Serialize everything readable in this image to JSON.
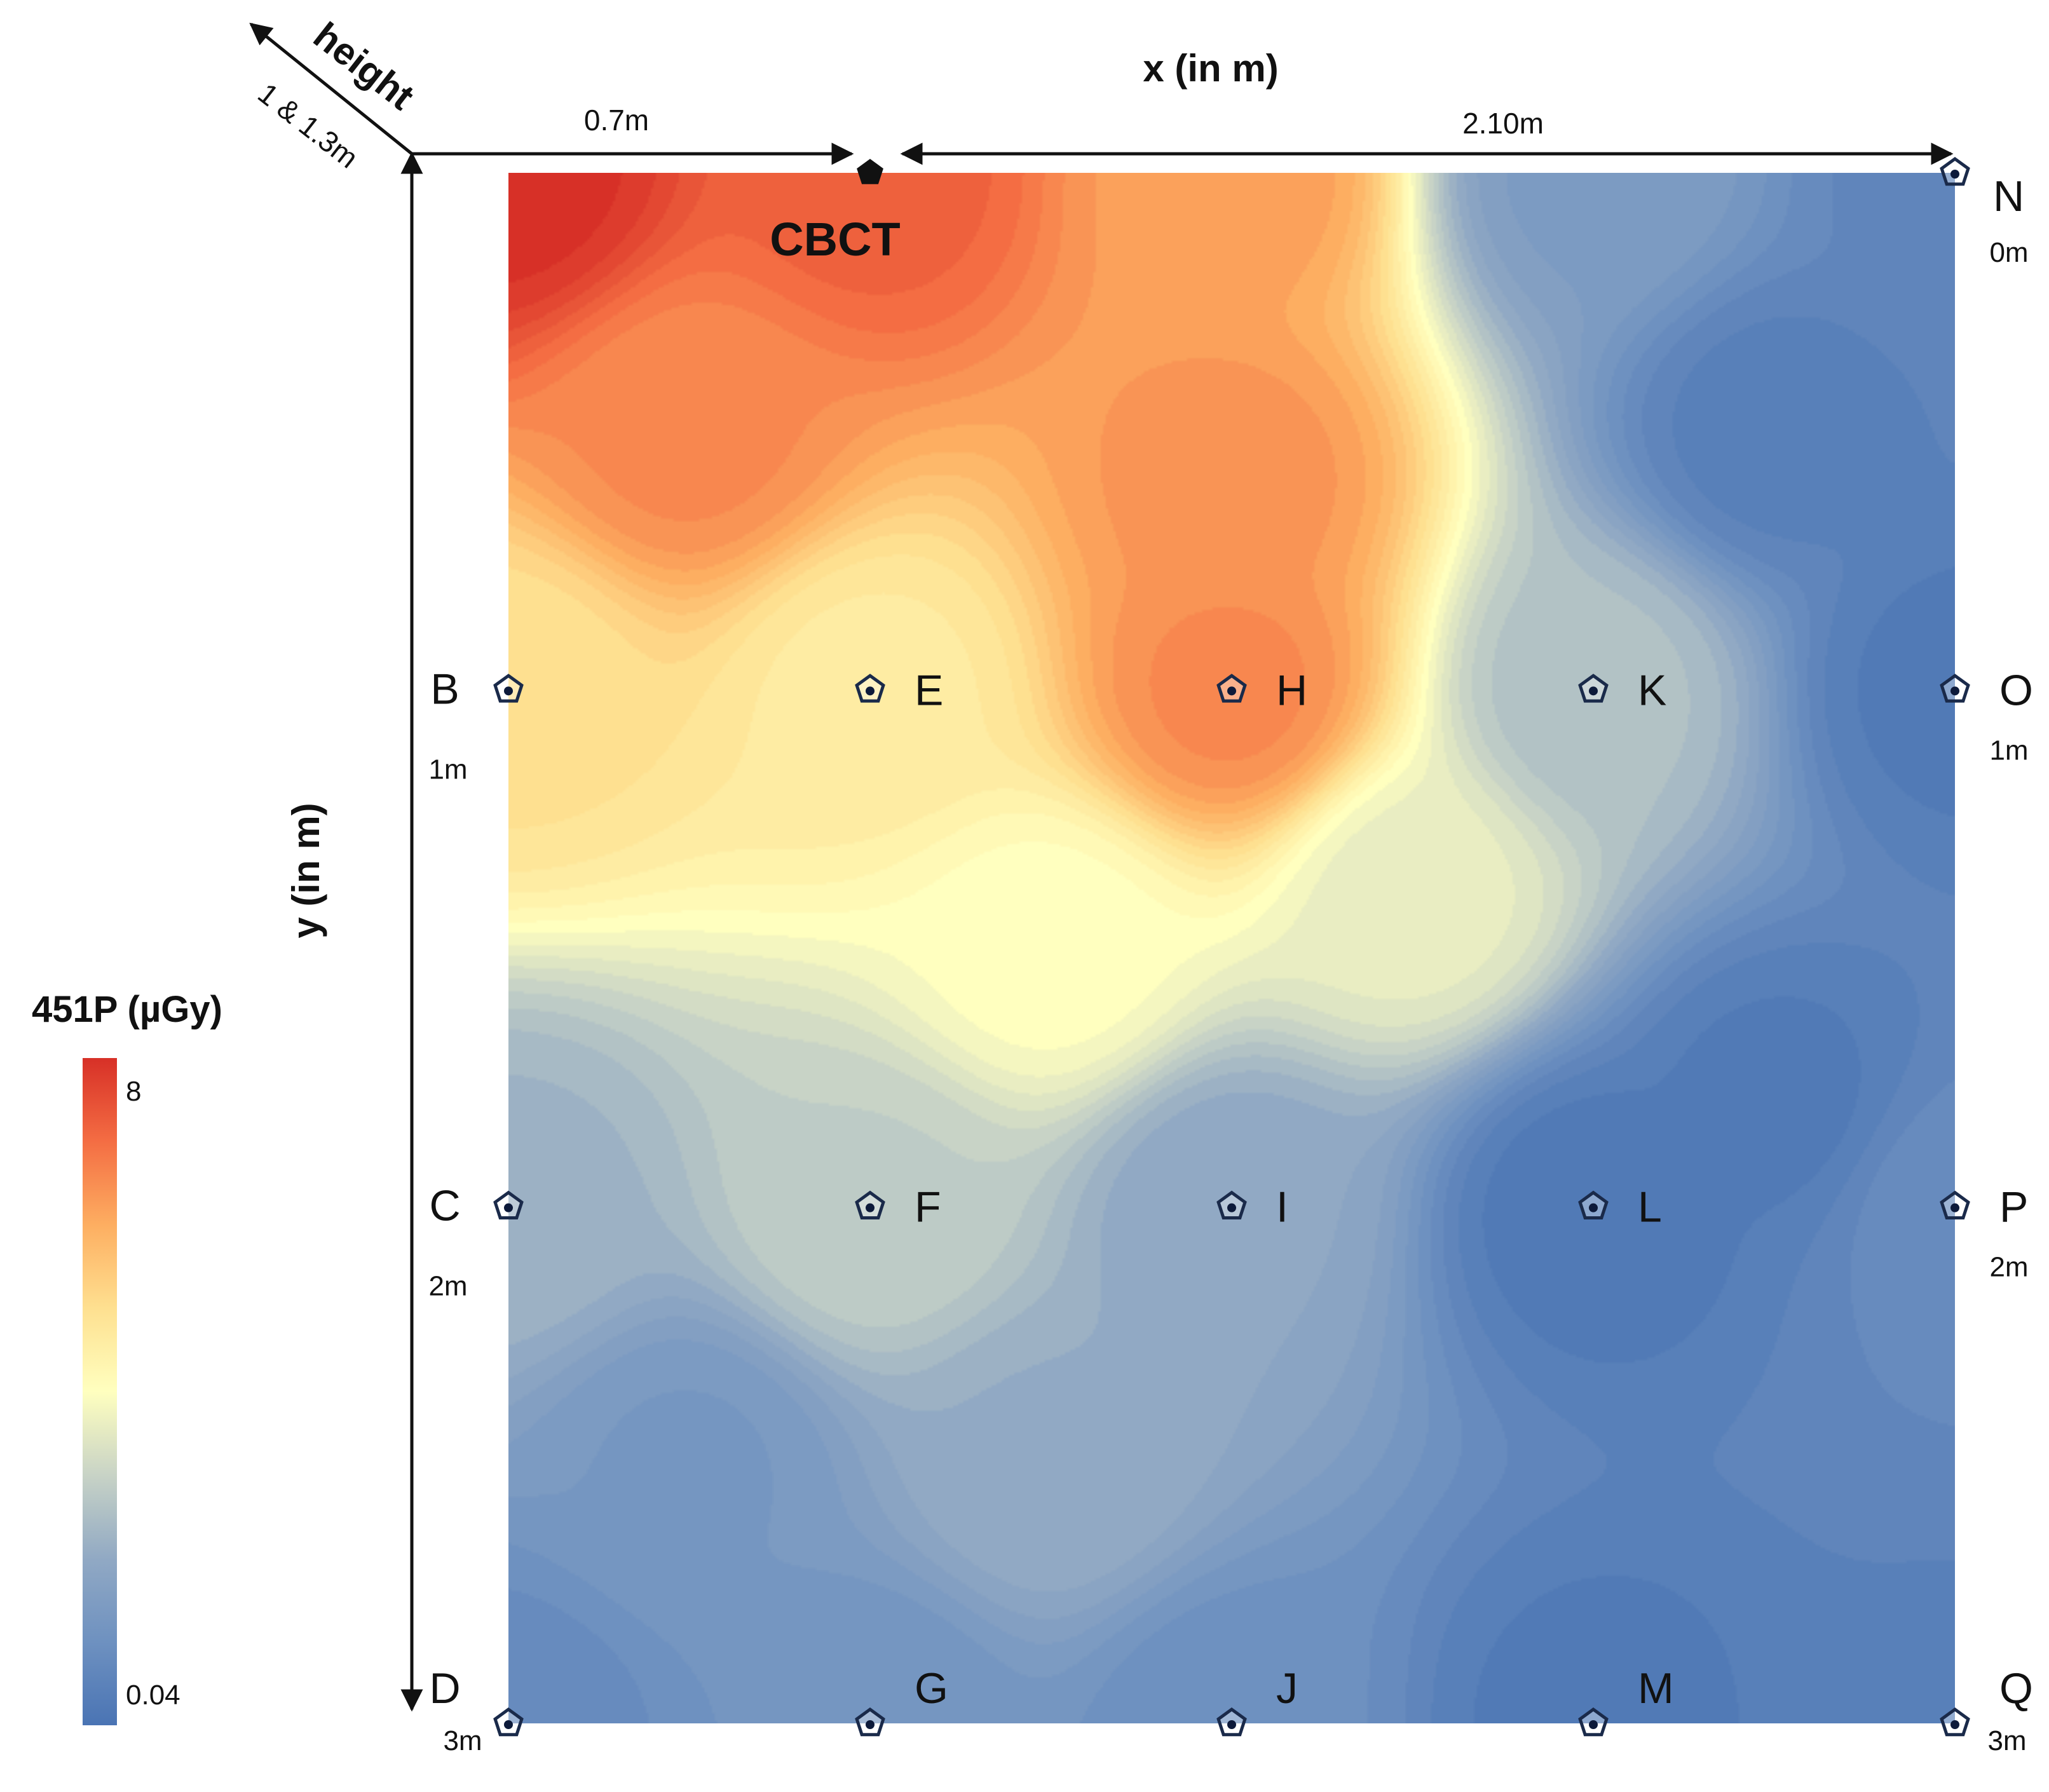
{
  "chart_data": {
    "type": "heatmap",
    "description_axis": {
      "x_title": "x (in m)",
      "y_title": "y (in m)",
      "height_title": "height",
      "height_value": "1 & 1.3m"
    },
    "dimensions": {
      "left_segment": "0.7m",
      "right_segment": "2.10m"
    },
    "source": {
      "label": "CBCT",
      "x": 0.7,
      "y": 0
    },
    "colorbar": {
      "title": "451P (µGy)",
      "max_label": "8",
      "min_label": "0.04",
      "stops": [
        "#d73027",
        "#f46d43",
        "#fdae61",
        "#fee090",
        "#ffffbf",
        "#c8d3c6",
        "#91a9c4",
        "#6e91c0",
        "#4a74b4"
      ]
    },
    "colors": {
      "frame": "#111111",
      "marker_stroke": "#1a2a4a",
      "marker_dot": "#0d1a3a"
    },
    "ylabels": [
      {
        "text": "0m",
        "y": 0
      },
      {
        "text": "1m",
        "y": 1
      },
      {
        "text": "2m",
        "y": 2
      },
      {
        "text": "3m",
        "y": 3
      }
    ],
    "points": [
      {
        "id": "B",
        "x": 0.0,
        "y": 1,
        "v": 0.62,
        "side": "left",
        "pos": "1m"
      },
      {
        "id": "C",
        "x": 0.0,
        "y": 2,
        "v": 0.28,
        "side": "left",
        "pos": "2m"
      },
      {
        "id": "D",
        "x": 0.0,
        "y": 3,
        "v": 0.1,
        "side": "left",
        "pos": "3m"
      },
      {
        "id": "E",
        "x": 0.7,
        "y": 1,
        "v": 0.58,
        "side": "right",
        "pos": ""
      },
      {
        "id": "F",
        "x": 0.7,
        "y": 2,
        "v": 0.36,
        "side": "right",
        "pos": ""
      },
      {
        "id": "G",
        "x": 0.7,
        "y": 3,
        "v": 0.14,
        "side": "right",
        "pos": ""
      },
      {
        "id": "H",
        "x": 1.4,
        "y": 1,
        "v": 0.82,
        "side": "right",
        "pos": ""
      },
      {
        "id": "I",
        "x": 1.4,
        "y": 2,
        "v": 0.24,
        "side": "right",
        "pos": ""
      },
      {
        "id": "J",
        "x": 1.4,
        "y": 3,
        "v": 0.12,
        "side": "right",
        "pos": ""
      },
      {
        "id": "K",
        "x": 2.1,
        "y": 1,
        "v": 0.32,
        "side": "right",
        "pos": ""
      },
      {
        "id": "L",
        "x": 2.1,
        "y": 2,
        "v": 0.02,
        "side": "right",
        "pos": ""
      },
      {
        "id": "M",
        "x": 2.1,
        "y": 3,
        "v": 0.03,
        "side": "right",
        "pos": ""
      },
      {
        "id": "N",
        "x": 2.8,
        "y": 0,
        "v": 0.08,
        "side": "right",
        "pos": "0m"
      },
      {
        "id": "O",
        "x": 2.8,
        "y": 1,
        "v": 0.03,
        "side": "right",
        "pos": "1m"
      },
      {
        "id": "P",
        "x": 2.8,
        "y": 2,
        "v": 0.1,
        "side": "right",
        "pos": "2m"
      },
      {
        "id": "Q",
        "x": 2.8,
        "y": 3,
        "v": 0.06,
        "side": "right",
        "pos": "3m"
      }
    ],
    "xlim": [
      0,
      2.8
    ],
    "ylim": [
      0,
      3
    ]
  }
}
